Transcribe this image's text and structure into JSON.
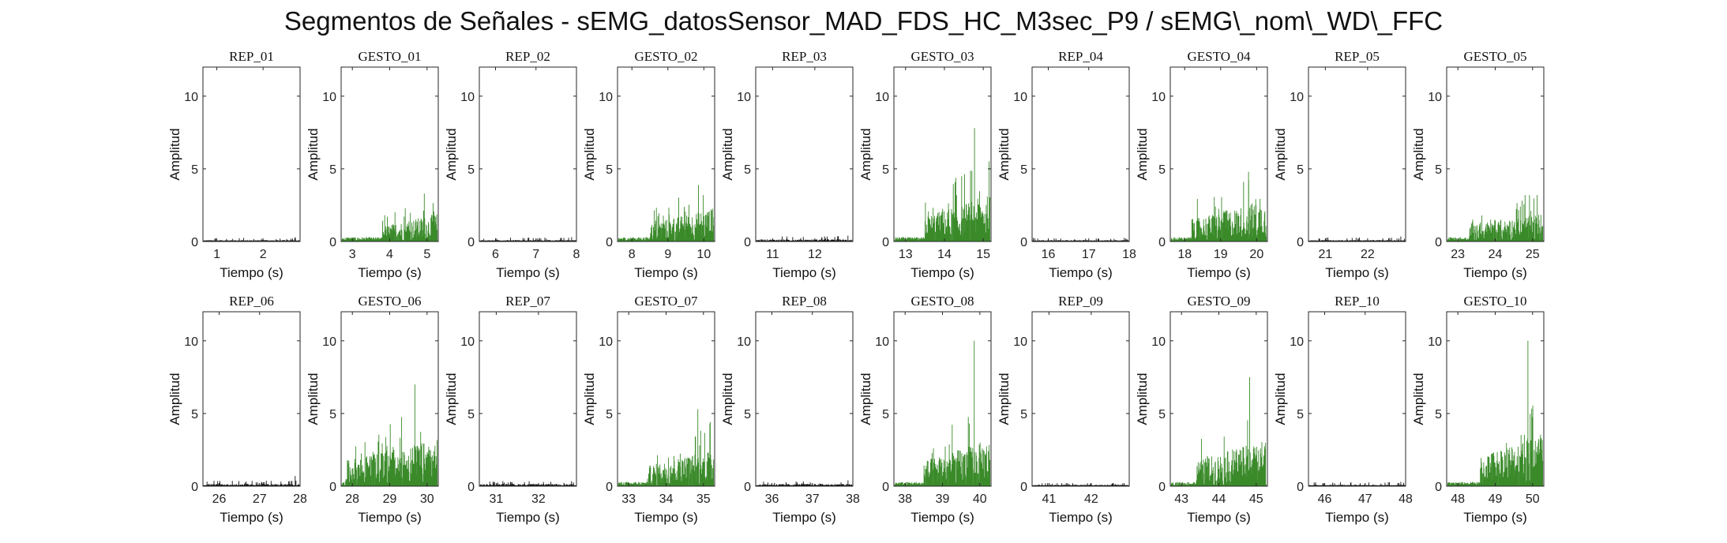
{
  "title": "Segmentos de Señales - sEMG_datosSensor_MAD_FDS_HC_M3sec_P9 / sEMG\\_nom\\_WD\\_FFC",
  "chart_data": {
    "type": "area",
    "common": {
      "xlabel": "Tiempo (s)",
      "ylabel": "Amplitud",
      "ylim": [
        0,
        12
      ],
      "yticks": [
        0,
        5,
        10
      ],
      "grid": false,
      "colors": {
        "rep": "#111111",
        "gesto": "#3a8a2a"
      }
    },
    "subplots": [
      {
        "title": "REP_01",
        "kind": "rep",
        "xlim": [
          0.7,
          2.8
        ],
        "xticks": [
          1,
          2
        ],
        "base": 0.1,
        "activity": 0.1,
        "peak": 0.3
      },
      {
        "title": "GESTO_01",
        "kind": "gesto",
        "xlim": [
          2.7,
          5.3
        ],
        "xticks": [
          3,
          4,
          5
        ],
        "onset": 3.8,
        "activity": 1.5,
        "peak": 3.3
      },
      {
        "title": "REP_02",
        "kind": "rep",
        "xlim": [
          5.6,
          8.0
        ],
        "xticks": [
          6,
          7,
          8
        ],
        "base": 0.1,
        "activity": 0.12,
        "peak": 0.3
      },
      {
        "title": "GESTO_02",
        "kind": "gesto",
        "xlim": [
          7.6,
          10.3
        ],
        "xticks": [
          8,
          9,
          10
        ],
        "onset": 8.5,
        "activity": 1.8,
        "peak": 3.9
      },
      {
        "title": "REP_03",
        "kind": "rep",
        "xlim": [
          10.6,
          12.9
        ],
        "xticks": [
          11,
          12
        ],
        "base": 0.15,
        "activity": 0.15,
        "peak": 0.4
      },
      {
        "title": "GESTO_03",
        "kind": "gesto",
        "xlim": [
          12.7,
          15.2
        ],
        "xticks": [
          13,
          14,
          15
        ],
        "onset": 13.5,
        "activity": 2.5,
        "peak": 7.8
      },
      {
        "title": "REP_04",
        "kind": "rep",
        "xlim": [
          15.6,
          18.0
        ],
        "xticks": [
          16,
          17,
          18
        ],
        "base": 0.1,
        "activity": 0.1,
        "peak": 0.25
      },
      {
        "title": "GESTO_04",
        "kind": "gesto",
        "xlim": [
          17.6,
          20.3
        ],
        "xticks": [
          18,
          19,
          20
        ],
        "onset": 18.2,
        "activity": 2.2,
        "peak": 4.8
      },
      {
        "title": "REP_05",
        "kind": "rep",
        "xlim": [
          20.6,
          22.9
        ],
        "xticks": [
          21,
          22
        ],
        "base": 0.1,
        "activity": 0.12,
        "peak": 0.35
      },
      {
        "title": "GESTO_05",
        "kind": "gesto",
        "xlim": [
          22.7,
          25.3
        ],
        "xticks": [
          23,
          24,
          25
        ],
        "onset": 23.3,
        "activity": 1.5,
        "peak": 3.2
      },
      {
        "title": "REP_06",
        "kind": "rep",
        "xlim": [
          25.6,
          28.0
        ],
        "xticks": [
          26,
          27,
          28
        ],
        "base": 0.15,
        "activity": 0.15,
        "peak": 0.7
      },
      {
        "title": "GESTO_06",
        "kind": "gesto",
        "xlim": [
          27.7,
          30.3
        ],
        "xticks": [
          28,
          29,
          30
        ],
        "onset": 27.8,
        "activity": 2.5,
        "peak": 7.0
      },
      {
        "title": "REP_07",
        "kind": "rep",
        "xlim": [
          30.6,
          32.9
        ],
        "xticks": [
          31,
          32
        ],
        "base": 0.15,
        "activity": 0.15,
        "peak": 0.35
      },
      {
        "title": "GESTO_07",
        "kind": "gesto",
        "xlim": [
          32.7,
          35.3
        ],
        "xticks": [
          33,
          34,
          35
        ],
        "onset": 33.5,
        "activity": 2.0,
        "peak": 5.3
      },
      {
        "title": "REP_08",
        "kind": "rep",
        "xlim": [
          35.6,
          38.0
        ],
        "xticks": [
          36,
          37,
          38
        ],
        "base": 0.15,
        "activity": 0.12,
        "peak": 0.4
      },
      {
        "title": "GESTO_08",
        "kind": "gesto",
        "xlim": [
          37.7,
          40.3
        ],
        "xticks": [
          38,
          39,
          40
        ],
        "onset": 38.5,
        "activity": 2.5,
        "peak": 10.0
      },
      {
        "title": "REP_09",
        "kind": "rep",
        "xlim": [
          40.6,
          42.9
        ],
        "xticks": [
          41,
          42
        ],
        "base": 0.1,
        "activity": 0.1,
        "peak": 0.2
      },
      {
        "title": "GESTO_09",
        "kind": "gesto",
        "xlim": [
          42.7,
          45.3
        ],
        "xticks": [
          43,
          44,
          45
        ],
        "onset": 43.4,
        "activity": 2.5,
        "peak": 7.5
      },
      {
        "title": "REP_10",
        "kind": "rep",
        "xlim": [
          45.6,
          48.0
        ],
        "xticks": [
          46,
          47,
          48
        ],
        "base": 0.1,
        "activity": 0.12,
        "peak": 0.3
      },
      {
        "title": "GESTO_10",
        "kind": "gesto",
        "xlim": [
          47.7,
          50.3
        ],
        "xticks": [
          48,
          49,
          50
        ],
        "onset": 48.6,
        "activity": 3.0,
        "peak": 10.0
      }
    ]
  }
}
